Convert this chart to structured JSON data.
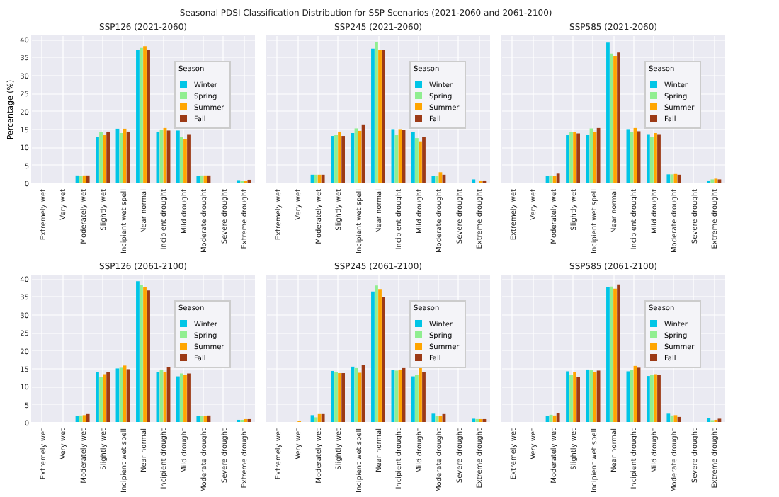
{
  "chart_data": [
    {
      "type": "bar",
      "title": "SSP126 (2021-2060)",
      "ylabel": "Percentage (%)",
      "legend_title": "Season",
      "legend": "top right",
      "grid": true,
      "ylim": [
        0,
        41
      ],
      "yticks": [
        0,
        5,
        10,
        15,
        20,
        25,
        30,
        35,
        40
      ],
      "annotations": [
        "Seasonal PDSI Classification Distribution for SSP Scenarios (2021-2060 and 2061-2100)"
      ],
      "categories": [
        "Extremely wet",
        "Very wet",
        "Moderately wet",
        "Slightly wet",
        "Incipient wet spell",
        "Near normal",
        "Incipient drought",
        "Mild drought",
        "Moderate drought",
        "Severe drought",
        "Extreme drought"
      ],
      "series": [
        {
          "name": "Winter",
          "color": "#00c5e6",
          "values": [
            0,
            0,
            2.0,
            12.8,
            15.0,
            37.0,
            14.2,
            14.5,
            1.8,
            0,
            0.7
          ]
        },
        {
          "name": "Spring",
          "color": "#90ee90",
          "values": [
            0,
            0,
            1.8,
            14.0,
            13.8,
            37.5,
            14.8,
            12.8,
            2.0,
            0,
            0.5
          ]
        },
        {
          "name": "Summer",
          "color": "#ffa500",
          "values": [
            0,
            0,
            2.0,
            13.2,
            15.0,
            38.0,
            15.2,
            12.2,
            2.0,
            0,
            0.5
          ]
        },
        {
          "name": "Fall",
          "color": "#9c3a16",
          "values": [
            0,
            0,
            2.0,
            14.2,
            14.2,
            37.0,
            14.5,
            13.5,
            2.0,
            0,
            0.8
          ]
        }
      ]
    },
    {
      "type": "bar",
      "title": "SSP245 (2021-2060)",
      "legend_title": "Season",
      "legend": "top right",
      "grid": true,
      "tick_labels": "x",
      "ylim": [
        0,
        41
      ],
      "yticks": [
        0,
        5,
        10,
        15,
        20,
        25,
        30,
        35,
        40
      ],
      "categories": [
        "Extremely wet",
        "Very wet",
        "Moderately wet",
        "Slightly wet",
        "Incipient wet spell",
        "Near normal",
        "Incipient drought",
        "Mild drought",
        "Moderate drought",
        "Severe drought",
        "Extreme drought"
      ],
      "series": [
        {
          "name": "Winter",
          "color": "#00c5e6",
          "values": [
            0,
            0,
            2.2,
            13.0,
            13.8,
            37.3,
            14.9,
            14.1,
            1.8,
            0,
            0.9
          ]
        },
        {
          "name": "Spring",
          "color": "#90ee90",
          "values": [
            0,
            0,
            2.2,
            13.4,
            15.1,
            39.2,
            13.4,
            12.4,
            1.8,
            0,
            null
          ]
        },
        {
          "name": "Summer",
          "color": "#ffa500",
          "values": [
            0,
            0,
            2.2,
            14.2,
            14.4,
            36.9,
            14.9,
            11.5,
            2.9,
            0,
            0.6
          ]
        },
        {
          "name": "Fall",
          "color": "#9c3a16",
          "values": [
            0,
            0,
            2.2,
            13.0,
            16.2,
            36.9,
            14.6,
            12.7,
            2.2,
            0,
            0.6
          ]
        }
      ]
    },
    {
      "type": "bar",
      "title": "SSP585 (2021-2060)",
      "legend_title": "Season",
      "legend": "top right",
      "grid": true,
      "tick_labels": "x",
      "ylim": [
        0,
        41
      ],
      "yticks": [
        0,
        5,
        10,
        15,
        20,
        25,
        30,
        35,
        40
      ],
      "categories": [
        "Extremely wet",
        "Very wet",
        "Moderately wet",
        "Slightly wet",
        "Incipient wet spell",
        "Near normal",
        "Incipient drought",
        "Mild drought",
        "Moderate drought",
        "Severe drought",
        "Extreme drought"
      ],
      "series": [
        {
          "name": "Winter",
          "color": "#00c5e6",
          "values": [
            0,
            0,
            1.8,
            13.2,
            13.3,
            39.0,
            14.9,
            13.5,
            2.3,
            0,
            0.6
          ]
        },
        {
          "name": "Spring",
          "color": "#90ee90",
          "values": [
            0,
            0,
            2.0,
            14.0,
            15.1,
            35.9,
            14.1,
            12.8,
            2.3,
            0,
            0.9
          ]
        },
        {
          "name": "Summer",
          "color": "#ffa500",
          "values": [
            0,
            0,
            1.9,
            14.1,
            14.1,
            35.3,
            15.2,
            13.8,
            2.4,
            0,
            1.1
          ]
        },
        {
          "name": "Fall",
          "color": "#9c3a16",
          "values": [
            0,
            0,
            2.5,
            13.7,
            15.2,
            36.2,
            14.3,
            13.5,
            2.2,
            0,
            0.9
          ]
        }
      ]
    },
    {
      "type": "bar",
      "title": "SSP126 (2061-2100)",
      "legend_title": "Season",
      "legend": "top right",
      "grid": true,
      "ylim": [
        0,
        41
      ],
      "yticks": [
        0,
        5,
        10,
        15,
        20,
        25,
        30,
        35,
        40
      ],
      "categories": [
        "Extremely wet",
        "Very wet",
        "Moderately wet",
        "Slightly wet",
        "Incipient wet spell",
        "Near normal",
        "Incipient drought",
        "Mild drought",
        "Moderate drought",
        "Severe drought",
        "Extreme drought"
      ],
      "series": [
        {
          "name": "Winter",
          "color": "#00c5e6",
          "values": [
            0,
            0,
            1.7,
            14.0,
            14.9,
            39.2,
            14.0,
            12.7,
            1.7,
            0,
            0.6
          ]
        },
        {
          "name": "Spring",
          "color": "#90ee90",
          "values": [
            0,
            0,
            1.8,
            12.6,
            15.1,
            38.2,
            14.6,
            13.5,
            1.7,
            0,
            0.6
          ]
        },
        {
          "name": "Summer",
          "color": "#ffa500",
          "values": [
            0,
            0,
            1.9,
            13.3,
            15.7,
            37.6,
            14.0,
            13.1,
            1.7,
            0,
            0.8
          ]
        },
        {
          "name": "Fall",
          "color": "#9c3a16",
          "values": [
            0,
            0,
            2.2,
            14.0,
            14.7,
            36.6,
            15.2,
            13.5,
            1.8,
            0,
            0.8
          ]
        }
      ]
    },
    {
      "type": "bar",
      "title": "SSP245 (2061-2100)",
      "legend_title": "Season",
      "legend": "top right",
      "grid": true,
      "tick_labels": "x",
      "ylim": [
        0,
        41
      ],
      "yticks": [
        0,
        5,
        10,
        15,
        20,
        25,
        30,
        35,
        40
      ],
      "categories": [
        "Extremely wet",
        "Very wet",
        "Moderately wet",
        "Slightly wet",
        "Incipient wet spell",
        "Near normal",
        "Incipient drought",
        "Mild drought",
        "Moderate drought",
        "Severe drought",
        "Extreme drought"
      ],
      "series": [
        {
          "name": "Winter",
          "color": "#00c5e6",
          "values": [
            0,
            0,
            1.9,
            14.2,
            15.4,
            36.3,
            14.5,
            12.7,
            2.3,
            0,
            0.9
          ]
        },
        {
          "name": "Spring",
          "color": "#90ee90",
          "values": [
            0,
            0,
            1.3,
            13.8,
            15.0,
            38.0,
            14.3,
            13.1,
            1.7,
            null,
            0.8
          ]
        },
        {
          "name": "Summer",
          "color": "#ffa500",
          "values": [
            0,
            0.3,
            2.2,
            13.6,
            13.7,
            37.0,
            14.6,
            15.1,
            1.7,
            0,
            0.8
          ]
        },
        {
          "name": "Fall",
          "color": "#9c3a16",
          "values": [
            0,
            0,
            2.2,
            13.6,
            15.9,
            34.9,
            15.0,
            14.0,
            2.2,
            0,
            0.8
          ]
        }
      ]
    },
    {
      "type": "bar",
      "title": "SSP585 (2061-2100)",
      "legend_title": "Season",
      "legend": "top right",
      "grid": true,
      "tick_labels": "x",
      "ylim": [
        0,
        41
      ],
      "yticks": [
        0,
        5,
        10,
        15,
        20,
        25,
        30,
        35,
        40
      ],
      "categories": [
        "Extremely wet",
        "Very wet",
        "Moderately wet",
        "Slightly wet",
        "Incipient wet spell",
        "Near normal",
        "Incipient drought",
        "Mild drought",
        "Moderate drought",
        "Severe drought",
        "Extreme drought"
      ],
      "series": [
        {
          "name": "Winter",
          "color": "#00c5e6",
          "values": [
            0,
            0,
            1.7,
            14.1,
            14.6,
            37.5,
            14.1,
            12.8,
            2.3,
            0,
            1.0
          ]
        },
        {
          "name": "Spring",
          "color": "#90ee90",
          "values": [
            0,
            0,
            2.0,
            13.1,
            14.6,
            37.7,
            14.5,
            13.2,
            1.8,
            0,
            0.5
          ]
        },
        {
          "name": "Summer",
          "color": "#ffa500",
          "values": [
            0,
            0,
            1.8,
            13.8,
            14.0,
            37.1,
            15.6,
            13.3,
            1.9,
            0,
            0.6
          ]
        },
        {
          "name": "Fall",
          "color": "#9c3a16",
          "values": [
            0,
            0,
            2.5,
            12.6,
            14.3,
            38.3,
            15.1,
            13.1,
            1.4,
            0,
            0.9
          ]
        }
      ]
    }
  ]
}
